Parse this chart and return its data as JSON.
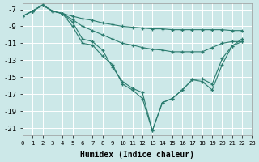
{
  "xlabel": "Humidex (Indice chaleur)",
  "bg_color": "#cce8e8",
  "grid_color": "#ffffff",
  "line_color": "#2a7b6e",
  "xlim": [
    0,
    23
  ],
  "ylim": [
    -21.8,
    -6.3
  ],
  "yticks": [
    -7,
    -9,
    -11,
    -13,
    -15,
    -17,
    -19,
    -21
  ],
  "xtick_labels": [
    "0",
    "1",
    "2",
    "3",
    "4",
    "5",
    "6",
    "7",
    "8",
    "9",
    "10",
    "11",
    "12",
    "13",
    "14",
    "15",
    "16",
    "17",
    "18",
    "19",
    "20",
    "21",
    "22",
    "23"
  ],
  "series": {
    "line1": {
      "x": [
        0,
        1,
        2,
        3,
        4,
        5,
        6,
        7,
        8,
        9,
        10,
        11,
        12,
        13,
        14,
        15,
        16,
        17,
        18,
        19,
        20,
        21,
        22
      ],
      "y": [
        -7.8,
        -7.2,
        -6.5,
        -7.2,
        -7.5,
        -7.8,
        -8.1,
        -8.3,
        -8.6,
        -8.8,
        -9.0,
        -9.1,
        -9.2,
        -9.3,
        -9.3,
        -9.4,
        -9.4,
        -9.4,
        -9.4,
        -9.4,
        -9.4,
        -9.5,
        -9.5
      ]
    },
    "line2": {
      "x": [
        0,
        1,
        2,
        3,
        4,
        5,
        6,
        7,
        8,
        9,
        10,
        11,
        12,
        13,
        14,
        15,
        16,
        17,
        18,
        19,
        20,
        21,
        22
      ],
      "y": [
        -7.8,
        -7.2,
        -6.5,
        -7.2,
        -7.5,
        -8.2,
        -9.0,
        -9.5,
        -10.0,
        -10.5,
        -11.0,
        -11.2,
        -11.5,
        -11.7,
        -11.8,
        -12.0,
        -12.0,
        -12.0,
        -12.0,
        -11.5,
        -11.0,
        -10.8,
        -10.8
      ]
    },
    "line3": {
      "x": [
        0,
        1,
        2,
        3,
        4,
        5,
        6,
        7,
        8,
        9,
        10,
        11,
        12,
        13,
        14,
        15,
        16,
        17,
        18,
        19,
        20,
        21,
        22
      ],
      "y": [
        -7.8,
        -7.2,
        -6.5,
        -7.2,
        -7.5,
        -8.5,
        -10.5,
        -10.8,
        -11.8,
        -13.8,
        -15.5,
        -16.3,
        -16.8,
        -21.3,
        -18.0,
        -17.5,
        -16.5,
        -15.3,
        -15.2,
        -15.8,
        -12.8,
        -11.3,
        -10.5
      ]
    },
    "line4": {
      "x": [
        1,
        2,
        3,
        4,
        5,
        6,
        7,
        8,
        9,
        10,
        11,
        12,
        13,
        14,
        15,
        16,
        17,
        18,
        19,
        20,
        21,
        22
      ],
      "y": [
        -7.2,
        -6.5,
        -7.2,
        -7.5,
        -9.0,
        -11.0,
        -11.2,
        -12.5,
        -13.5,
        -15.8,
        -16.5,
        -17.5,
        -21.3,
        -18.0,
        -17.5,
        -16.5,
        -15.3,
        -15.5,
        -16.5,
        -13.5,
        -11.3,
        -10.8
      ]
    }
  }
}
